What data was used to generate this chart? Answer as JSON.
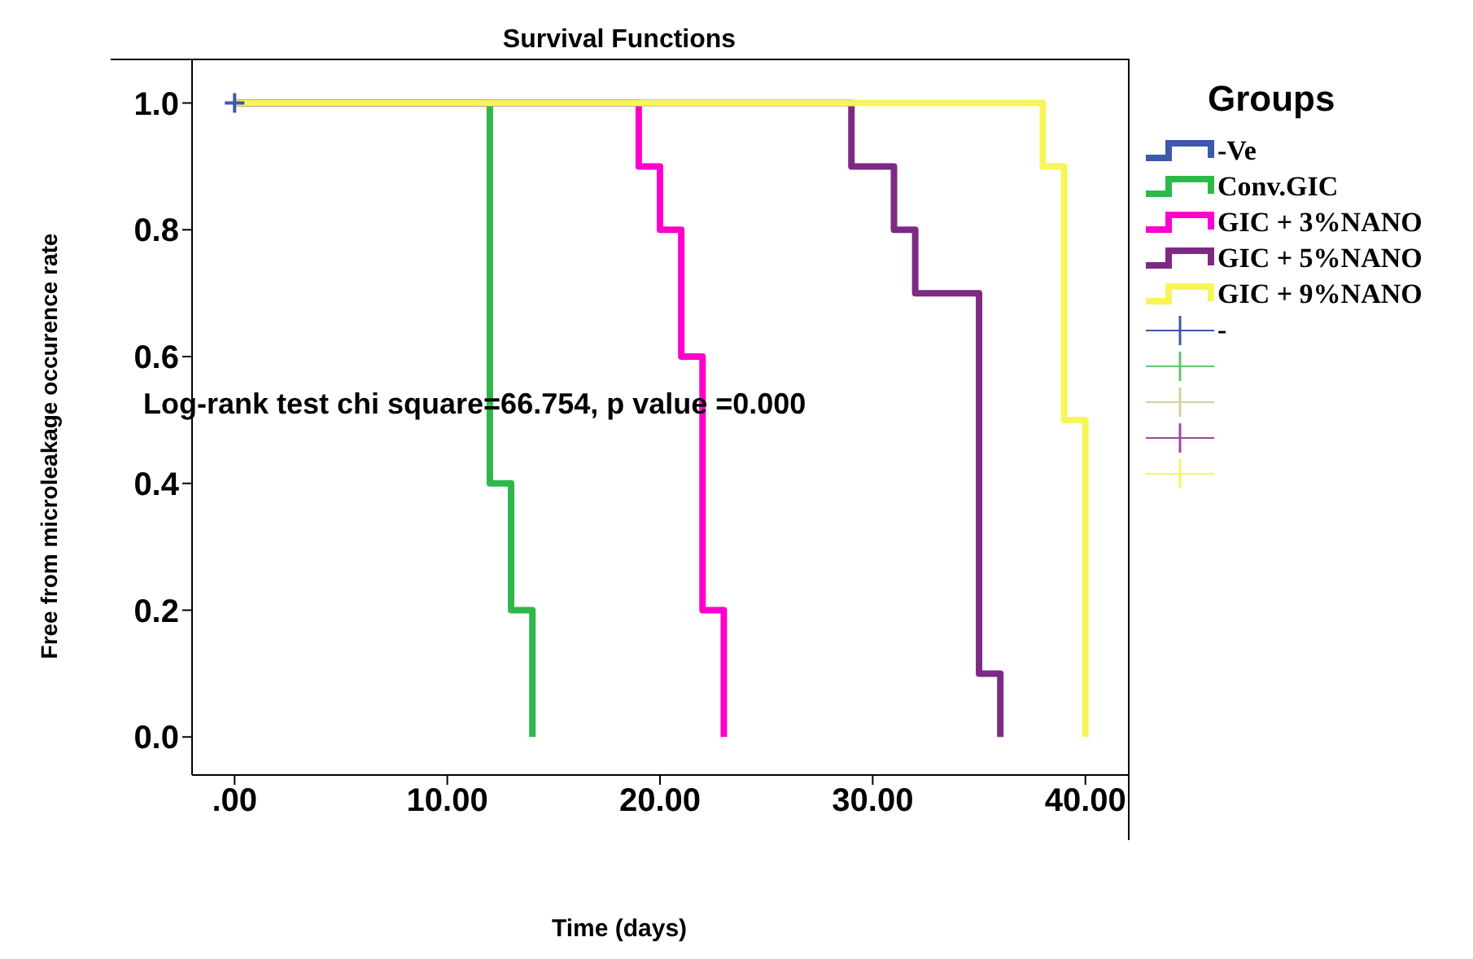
{
  "chart_data": {
    "type": "step",
    "title": "Survival Functions",
    "xlabel": "Time (days)",
    "ylabel": "Free from microleakage occurence rate",
    "legend_title": "Groups",
    "legend": "right",
    "grid": false,
    "xlim": [
      -2,
      42
    ],
    "xticks": [
      {
        "value": 0,
        "label": ".00"
      },
      {
        "value": 10,
        "label": "10.00"
      },
      {
        "value": 20,
        "label": "20.00"
      },
      {
        "value": 30,
        "label": "30.00"
      },
      {
        "value": 40,
        "label": "40.00"
      }
    ],
    "ylim": [
      -0.06,
      1.07
    ],
    "yticks": [
      {
        "value": 0,
        "label": "0.0"
      },
      {
        "value": 0.2,
        "label": "0.2"
      },
      {
        "value": 0.4,
        "label": "0.4"
      },
      {
        "value": 0.6,
        "label": "0.6"
      },
      {
        "value": 0.8,
        "label": "0.8"
      },
      {
        "value": 1,
        "label": "1.0"
      }
    ],
    "annotations": [
      "Log-rank test chi square=66.754, p value =0.000"
    ],
    "series": [
      {
        "name": "-Ve",
        "color": "#3e58ac"
      },
      {
        "name": "Conv.GIC",
        "color": "#2eb84a",
        "x": [
          0,
          12,
          13,
          14
        ],
        "values": [
          1,
          0.4,
          0.2,
          0
        ]
      },
      {
        "name": "GIC + 3%NANO",
        "color": "#ff00cc",
        "x": [
          0,
          19,
          20,
          21,
          22,
          23
        ],
        "values": [
          1,
          0.9,
          0.8,
          0.6,
          0.2,
          0
        ]
      },
      {
        "name": "GIC + 5%NANO",
        "color": "#7d2a82",
        "x": [
          0,
          29,
          31,
          32,
          35,
          36
        ],
        "values": [
          1,
          0.9,
          0.8,
          0.7,
          0.1,
          0
        ]
      },
      {
        "name": "GIC + 9%NANO",
        "color": "#f7f55a",
        "x": [
          0,
          38,
          39,
          40
        ],
        "values": [
          1,
          0.9,
          0.5,
          0
        ]
      },
      {
        "name": "-",
        "type": "scatter",
        "marker": "cross",
        "color": "#3e58ac",
        "x": [
          0
        ],
        "values": [
          1
        ]
      },
      {
        "type": "scatter",
        "marker": "cross",
        "color": "#5cc86c"
      },
      {
        "type": "scatter",
        "marker": "cross",
        "color": "#d8d09a"
      },
      {
        "type": "scatter",
        "marker": "cross",
        "color": "#9a4aa0"
      },
      {
        "type": "scatter",
        "marker": "cross",
        "color": "#f7f55a"
      }
    ]
  }
}
